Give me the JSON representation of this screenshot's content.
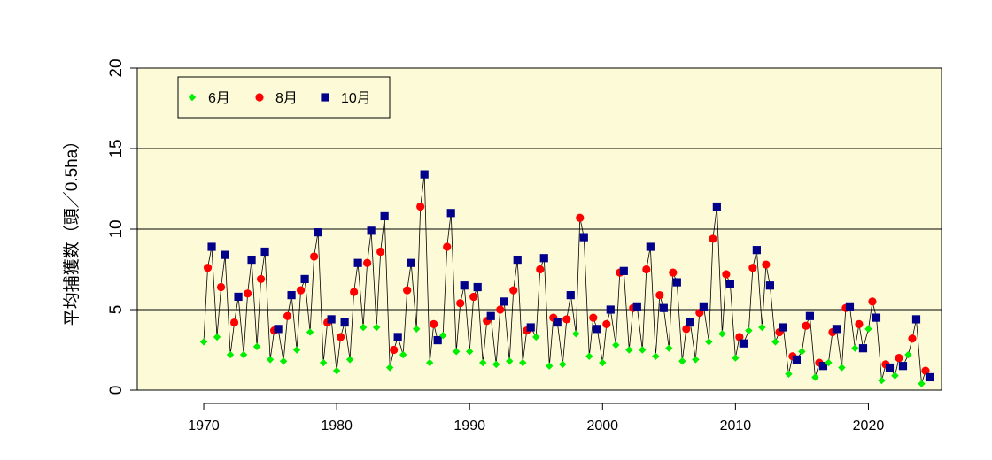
{
  "chart_data": {
    "type": "line",
    "title": "",
    "xlabel": "",
    "ylabel": "平均捕獲数（頭／0.5ha）",
    "xlim": [
      1965,
      2025.5
    ],
    "ylim": [
      0,
      20
    ],
    "x_ticks": [
      1970,
      1980,
      1990,
      2000,
      2010,
      2020
    ],
    "y_ticks": [
      0,
      5,
      10,
      15,
      20
    ],
    "grid": "horizontal",
    "background": "#fdfbd7",
    "legend": {
      "position": "top-left",
      "entries": [
        {
          "label": "6月",
          "color": "#00ee00",
          "marker": "diamond"
        },
        {
          "label": "8月",
          "color": "#ff0000",
          "marker": "circle"
        },
        {
          "label": "10月",
          "color": "#00008b",
          "marker": "square"
        }
      ]
    },
    "years": [
      1970,
      1971,
      1972,
      1973,
      1974,
      1975,
      1976,
      1977,
      1978,
      1979,
      1980,
      1981,
      1982,
      1983,
      1984,
      1985,
      1986,
      1987,
      1988,
      1989,
      1990,
      1991,
      1992,
      1993,
      1994,
      1995,
      1996,
      1997,
      1998,
      1999,
      2000,
      2001,
      2002,
      2003,
      2004,
      2005,
      2006,
      2007,
      2008,
      2009,
      2010,
      2011,
      2012,
      2013,
      2014,
      2015,
      2016,
      2017,
      2018,
      2019,
      2020,
      2021,
      2022,
      2023,
      2024
    ],
    "series": [
      {
        "name": "6月",
        "offset": 0.0,
        "values": [
          3.0,
          3.3,
          2.2,
          2.2,
          2.7,
          1.9,
          1.8,
          2.5,
          3.6,
          1.7,
          1.2,
          1.9,
          3.9,
          3.9,
          1.4,
          2.2,
          3.8,
          1.7,
          3.4,
          2.4,
          2.4,
          1.7,
          1.6,
          1.8,
          1.7,
          3.3,
          1.5,
          1.6,
          3.5,
          2.1,
          1.7,
          2.8,
          2.5,
          2.5,
          2.1,
          2.6,
          1.8,
          1.9,
          3.0,
          3.5,
          2.0,
          3.7,
          3.9,
          3.0,
          1.0,
          2.4,
          0.8,
          1.7,
          1.4,
          2.6,
          3.8,
          0.6,
          0.9,
          2.2,
          0.4
        ]
      },
      {
        "name": "8月",
        "offset": 0.3,
        "values": [
          7.6,
          6.4,
          4.2,
          6.0,
          6.9,
          3.7,
          4.6,
          6.2,
          8.3,
          4.2,
          3.3,
          6.1,
          7.9,
          8.6,
          2.5,
          6.2,
          11.4,
          4.1,
          8.9,
          5.4,
          5.8,
          4.3,
          5.0,
          6.2,
          3.7,
          7.5,
          4.5,
          4.4,
          10.7,
          4.5,
          4.1,
          7.3,
          5.1,
          7.5,
          5.9,
          7.3,
          3.8,
          4.8,
          9.4,
          7.2,
          3.3,
          7.6,
          7.8,
          3.6,
          2.1,
          4.0,
          1.7,
          3.6,
          5.1,
          4.1,
          5.5,
          1.6,
          2.0,
          3.2,
          1.2
        ]
      },
      {
        "name": "10月",
        "offset": 0.6,
        "values": [
          8.9,
          8.4,
          5.8,
          8.1,
          8.6,
          3.8,
          5.9,
          6.9,
          9.8,
          4.4,
          4.2,
          7.9,
          9.9,
          10.8,
          3.3,
          7.9,
          13.4,
          3.1,
          11.0,
          6.5,
          6.4,
          4.6,
          5.5,
          8.1,
          3.9,
          8.2,
          4.2,
          5.9,
          9.5,
          3.8,
          5.0,
          7.4,
          5.2,
          8.9,
          5.1,
          6.7,
          4.2,
          5.2,
          11.4,
          6.6,
          2.9,
          8.7,
          6.5,
          3.9,
          1.9,
          4.6,
          1.5,
          3.8,
          5.2,
          2.6,
          4.5,
          1.4,
          1.5,
          4.4,
          0.8
        ]
      }
    ]
  }
}
